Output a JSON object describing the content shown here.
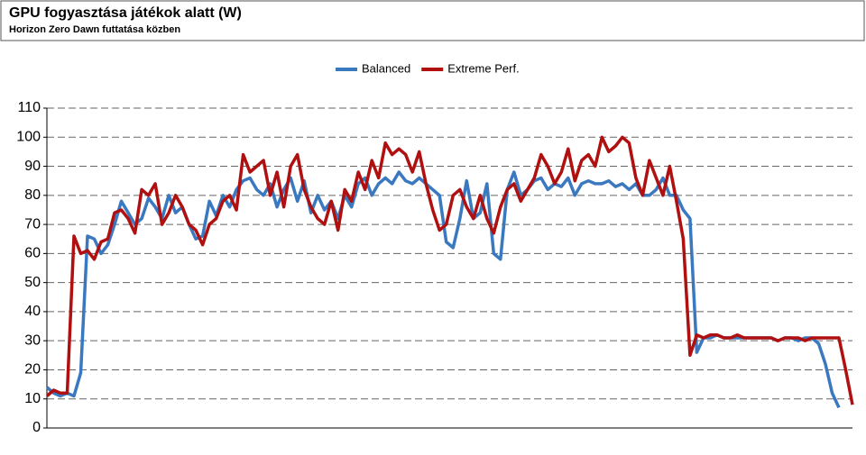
{
  "chart_data": {
    "type": "line",
    "title": "GPU fogyasztása játékok alatt (W)",
    "subtitle": "Horizon Zero Dawn futtatása közben",
    "series": [
      {
        "name": "Balanced",
        "color": "#3a78c0",
        "values": [
          14,
          12,
          11,
          12,
          11,
          19,
          66,
          65,
          60,
          63,
          70,
          78,
          74,
          70,
          72,
          79,
          76,
          72,
          80,
          74,
          76,
          70,
          65,
          66,
          78,
          73,
          80,
          76,
          82,
          85,
          86,
          82,
          80,
          84,
          76,
          82,
          86,
          78,
          85,
          74,
          80,
          75,
          78,
          72,
          80,
          76,
          84,
          86,
          80,
          84,
          86,
          84,
          88,
          85,
          84,
          86,
          84,
          82,
          80,
          64,
          62,
          72,
          85,
          72,
          74,
          84,
          60,
          58,
          82,
          88,
          80,
          82,
          85,
          86,
          82,
          84,
          83,
          86,
          80,
          84,
          85,
          84,
          84,
          85,
          83,
          84,
          82,
          84,
          80,
          80,
          82,
          86,
          80,
          80,
          75,
          72,
          26,
          31,
          31,
          32,
          31,
          31,
          31,
          31,
          31,
          31,
          31,
          31,
          30,
          31,
          31,
          30,
          31,
          31,
          29,
          22,
          12,
          7,
          null,
          null
        ]
      },
      {
        "name": "Extreme Perf.",
        "color": "#b01010",
        "values": [
          11,
          13,
          12,
          12,
          66,
          60,
          61,
          58,
          64,
          65,
          74,
          75,
          72,
          67,
          82,
          80,
          84,
          70,
          74,
          80,
          76,
          70,
          68,
          63,
          70,
          72,
          78,
          80,
          75,
          94,
          88,
          90,
          92,
          80,
          88,
          76,
          90,
          94,
          82,
          76,
          72,
          70,
          78,
          68,
          82,
          78,
          88,
          82,
          92,
          86,
          98,
          94,
          96,
          94,
          88,
          95,
          84,
          75,
          68,
          70,
          80,
          82,
          76,
          72,
          80,
          72,
          67,
          76,
          82,
          84,
          78,
          82,
          86,
          94,
          90,
          84,
          88,
          96,
          85,
          92,
          94,
          90,
          100,
          95,
          97,
          100,
          98,
          86,
          80,
          92,
          86,
          80,
          90,
          78,
          65,
          25,
          32,
          31,
          32,
          32,
          31,
          31,
          32,
          31,
          31,
          31,
          31,
          31,
          30,
          31,
          31,
          31,
          30,
          31,
          31,
          31,
          31,
          31,
          20,
          8
        ]
      }
    ],
    "ylim": [
      0,
      110
    ],
    "yticks": [
      0,
      10,
      20,
      30,
      40,
      50,
      60,
      70,
      80,
      90,
      100,
      110
    ],
    "grid": true,
    "legend": "top"
  }
}
